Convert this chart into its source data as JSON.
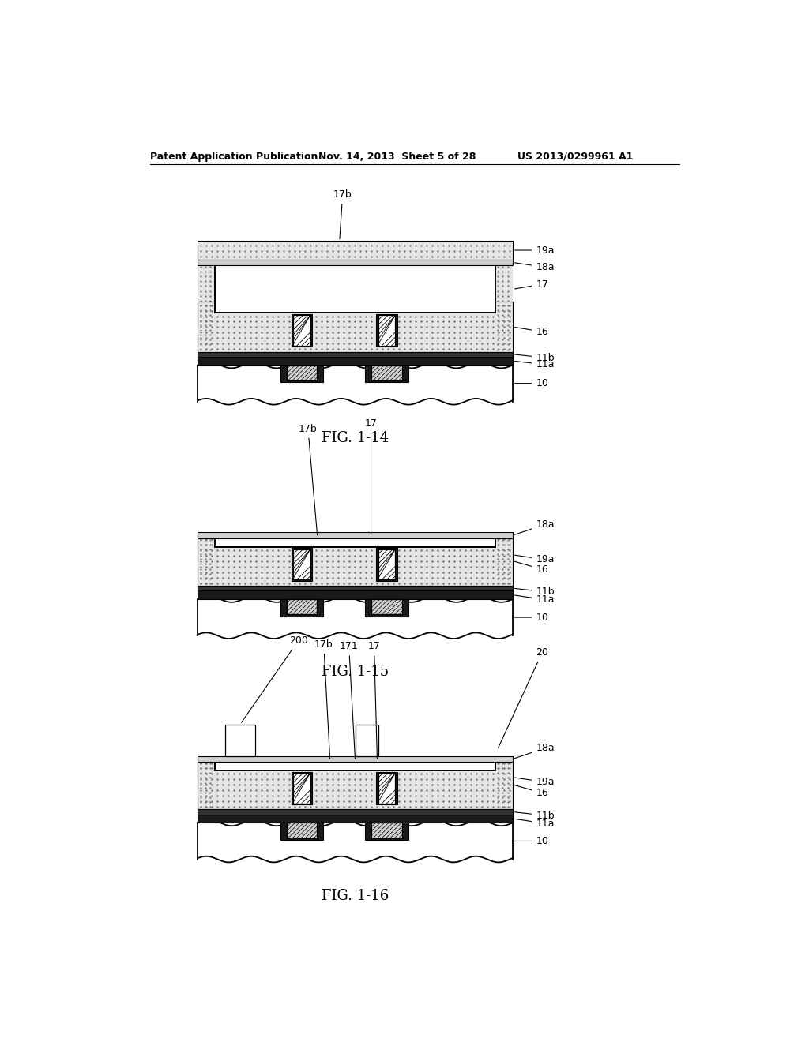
{
  "background_color": "#ffffff",
  "header_left": "Patent Application Publication",
  "header_mid": "Nov. 14, 2013  Sheet 5 of 28",
  "header_right": "US 2013/0299961 A1",
  "fig114_name": "FIG. 1-14",
  "fig115_name": "FIG. 1-15",
  "fig116_name": "FIG. 1-16"
}
